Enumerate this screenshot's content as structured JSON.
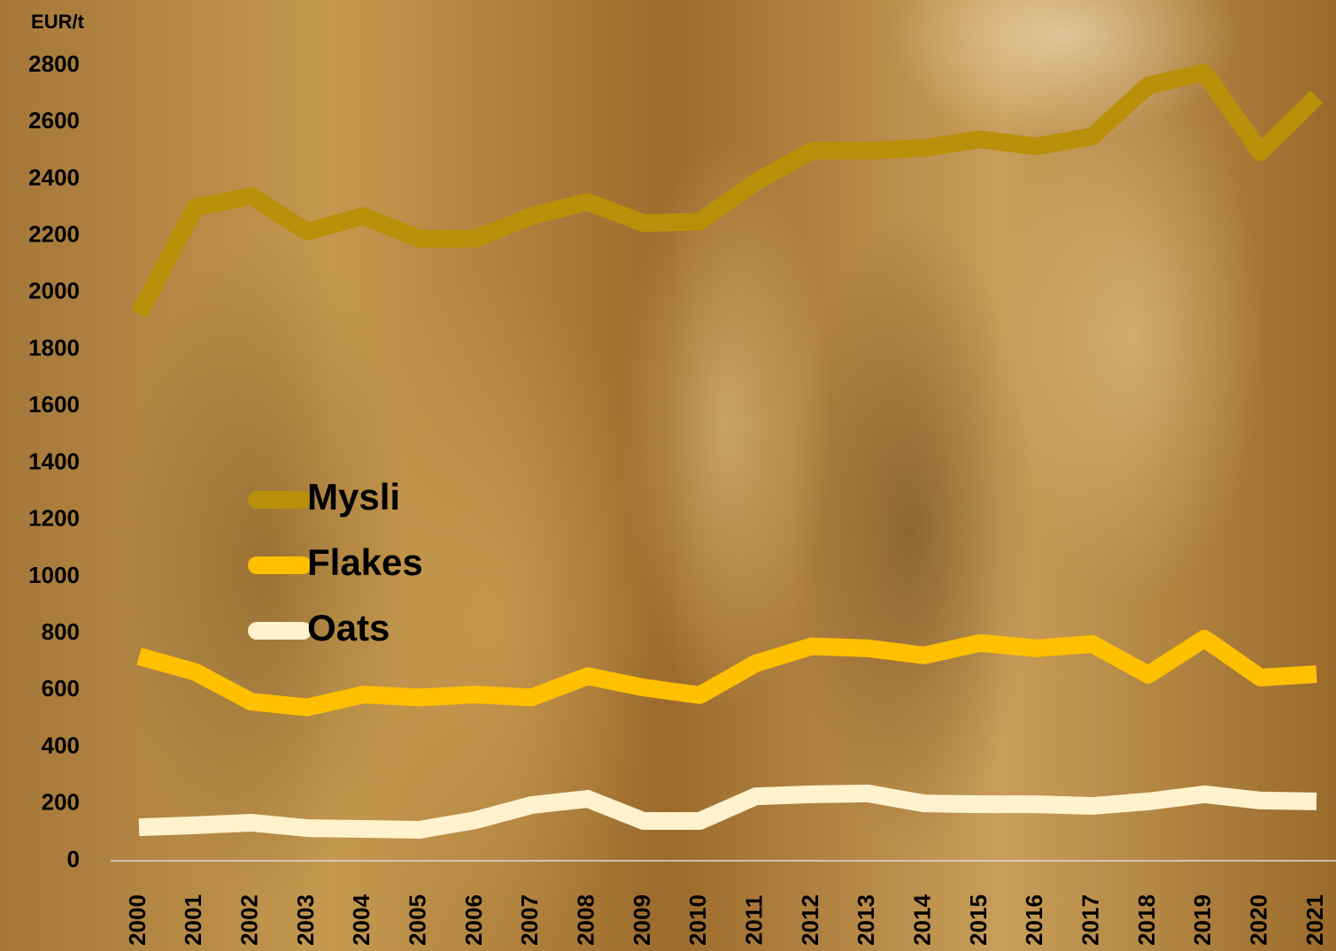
{
  "chart_data": {
    "type": "line",
    "y_label": "EUR/t",
    "x": [
      "2000",
      "2001",
      "2002",
      "2003",
      "2004",
      "2005",
      "2006",
      "2007",
      "2008",
      "2009",
      "2010",
      "2011",
      "2012",
      "2013",
      "2014",
      "2015",
      "2016",
      "2017",
      "2018",
      "2019",
      "2020",
      "2021"
    ],
    "series": [
      {
        "name": "Mysli",
        "color": "#b8900a",
        "values": [
          1925,
          2300,
          2340,
          2215,
          2270,
          2190,
          2190,
          2270,
          2320,
          2245,
          2250,
          2390,
          2500,
          2500,
          2510,
          2540,
          2515,
          2550,
          2730,
          2775,
          2495,
          2690
        ]
      },
      {
        "name": "Flakes",
        "color": "#ffc000",
        "values": [
          720,
          665,
          560,
          540,
          585,
          575,
          585,
          575,
          650,
          610,
          583,
          695,
          755,
          748,
          723,
          767,
          748,
          763,
          655,
          782,
          645,
          657
        ]
      },
      {
        "name": "Oats",
        "color": "#fff2cc",
        "values": [
          118,
          125,
          134,
          115,
          112,
          109,
          143,
          196,
          218,
          140,
          140,
          227,
          234,
          237,
          202,
          199,
          199,
          193,
          209,
          234,
          212,
          209
        ]
      }
    ],
    "ylim": [
      0,
      2800
    ],
    "yticks": [
      0,
      200,
      400,
      600,
      800,
      1000,
      1200,
      1400,
      1600,
      1800,
      2000,
      2200,
      2400,
      2600,
      2800
    ]
  }
}
